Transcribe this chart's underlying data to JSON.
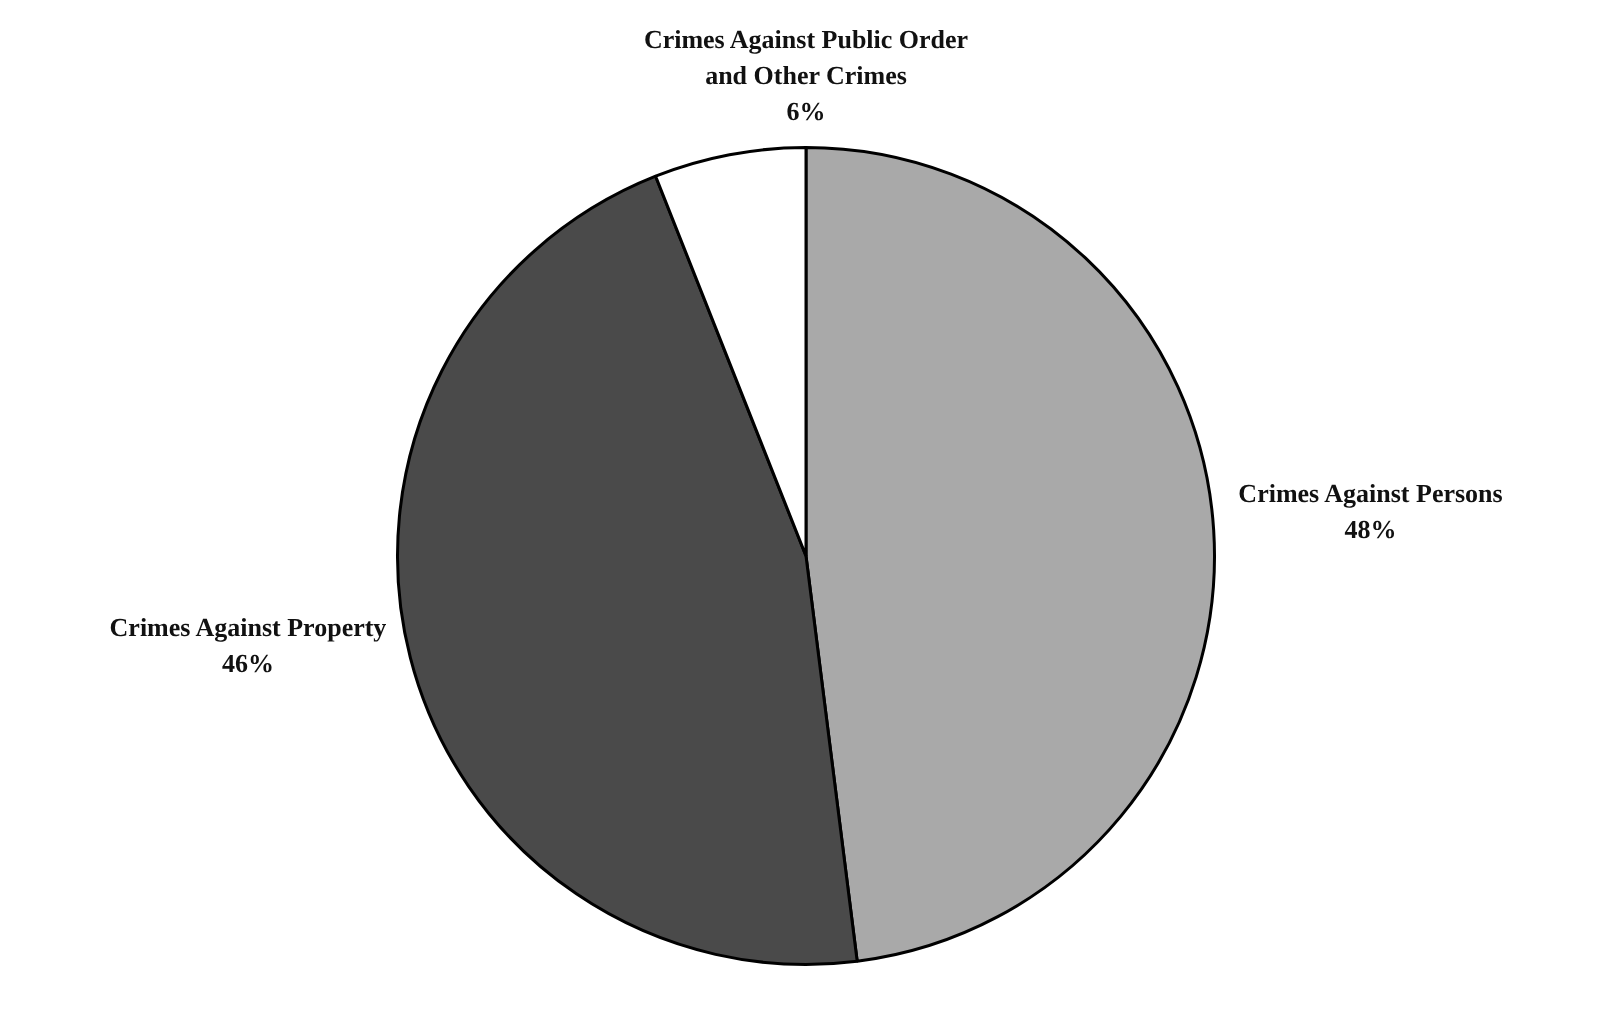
{
  "chart_data": {
    "type": "pie",
    "categories": [
      "Crimes Against Persons",
      "Crimes Against Property",
      "Crimes Against Public Order and Other Crimes"
    ],
    "values": [
      48,
      46,
      6
    ],
    "colors": [
      "#a9a9a9",
      "#4a4a4a",
      "#ffffff"
    ],
    "value_labels": [
      "48%",
      "46%",
      "6%"
    ],
    "legend": false
  }
}
